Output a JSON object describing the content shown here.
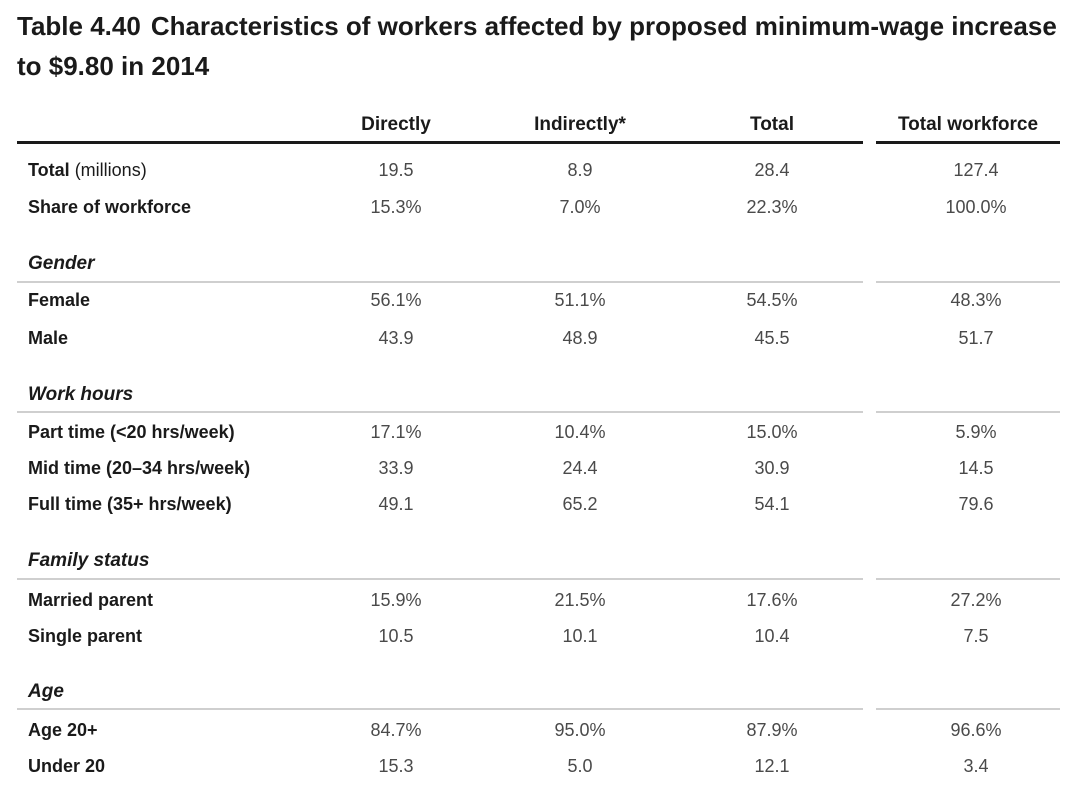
{
  "title": {
    "number": "Table 4.40",
    "text": "Characteristics of workers affected by proposed minimum-wage increase to $9.80 in 2014"
  },
  "columns": [
    "Directly",
    "Indirectly*",
    "Total",
    "Total workforce"
  ],
  "top_rows": [
    {
      "label": "Total",
      "unit": "(millions)",
      "values": [
        "19.5",
        "8.9",
        "28.4",
        "127.4"
      ]
    },
    {
      "label": "Share of workforce",
      "unit": "",
      "values": [
        "15.3%",
        "7.0%",
        "22.3%",
        "100.0%"
      ]
    }
  ],
  "sections": [
    {
      "heading": "Gender",
      "rows": [
        {
          "label": "Female",
          "values": [
            "56.1%",
            "51.1%",
            "54.5%",
            "48.3%"
          ]
        },
        {
          "label": "Male",
          "values": [
            "43.9",
            "48.9",
            "45.5",
            "51.7"
          ]
        }
      ]
    },
    {
      "heading": "Work hours",
      "rows": [
        {
          "label": "Part time (<20 hrs/week)",
          "values": [
            "17.1%",
            "10.4%",
            "15.0%",
            "5.9%"
          ]
        },
        {
          "label": "Mid time (20–34 hrs/week)",
          "values": [
            "33.9",
            "24.4",
            "30.9",
            "14.5"
          ]
        },
        {
          "label": "Full time (35+ hrs/week)",
          "values": [
            "49.1",
            "65.2",
            "54.1",
            "79.6"
          ]
        }
      ]
    },
    {
      "heading": "Family status",
      "rows": [
        {
          "label": "Married parent",
          "values": [
            "15.9%",
            "21.5%",
            "17.6%",
            "27.2%"
          ]
        },
        {
          "label": "Single parent",
          "values": [
            "10.5",
            "10.1",
            "10.4",
            "7.5"
          ]
        }
      ]
    },
    {
      "heading": "Age",
      "rows": [
        {
          "label": "Age 20+",
          "values": [
            "84.7%",
            "95.0%",
            "87.9%",
            "96.6%"
          ]
        },
        {
          "label": "Under 20",
          "values": [
            "15.3",
            "5.0",
            "12.1",
            "3.4"
          ]
        }
      ]
    }
  ]
}
